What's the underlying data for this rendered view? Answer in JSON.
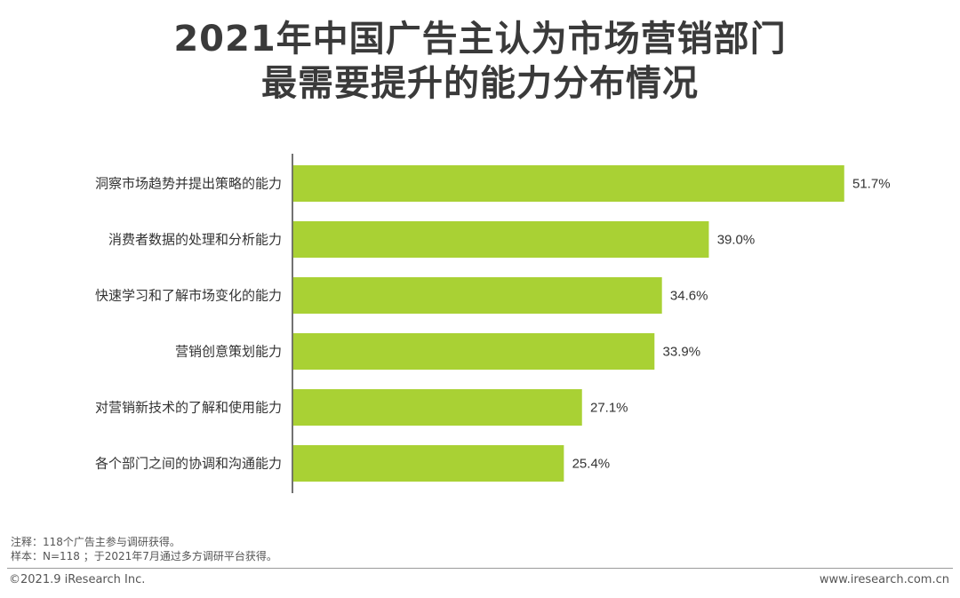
{
  "header": {
    "title_line_1": "2021年中国广告主认为市场营销部门",
    "title_line_2": "最需要提升的能力分布情况"
  },
  "colors": {
    "bar": "#a9d134",
    "axis": "#444444",
    "text": "#333333"
  },
  "chart_data": {
    "type": "bar",
    "orientation": "horizontal",
    "categories": [
      "洞察市场趋势并提出策略的能力",
      "消费者数据的处理和分析能力",
      "快速学习和了解市场变化的能力",
      "营销创意策划能力",
      "对营销新技术的了解和使用能力",
      "各个部门之间的协调和沟通能力"
    ],
    "values": [
      51.7,
      39.0,
      34.6,
      33.9,
      27.1,
      25.4
    ],
    "value_labels": [
      "51.7%",
      "39.0%",
      "34.6%",
      "33.9%",
      "27.1%",
      "25.4%"
    ],
    "unit": "%",
    "xlim": [
      0,
      51.7
    ],
    "grid": false,
    "legend": "none"
  },
  "notes": {
    "line_1": "注释：118个广告主参与调研获得。",
    "line_2": "样本：N=118 ；于2021年7月通过多方调研平台获得。"
  },
  "footer": {
    "copyright": "©2021.9 iResearch Inc.",
    "website": "www.iresearch.com.cn"
  }
}
